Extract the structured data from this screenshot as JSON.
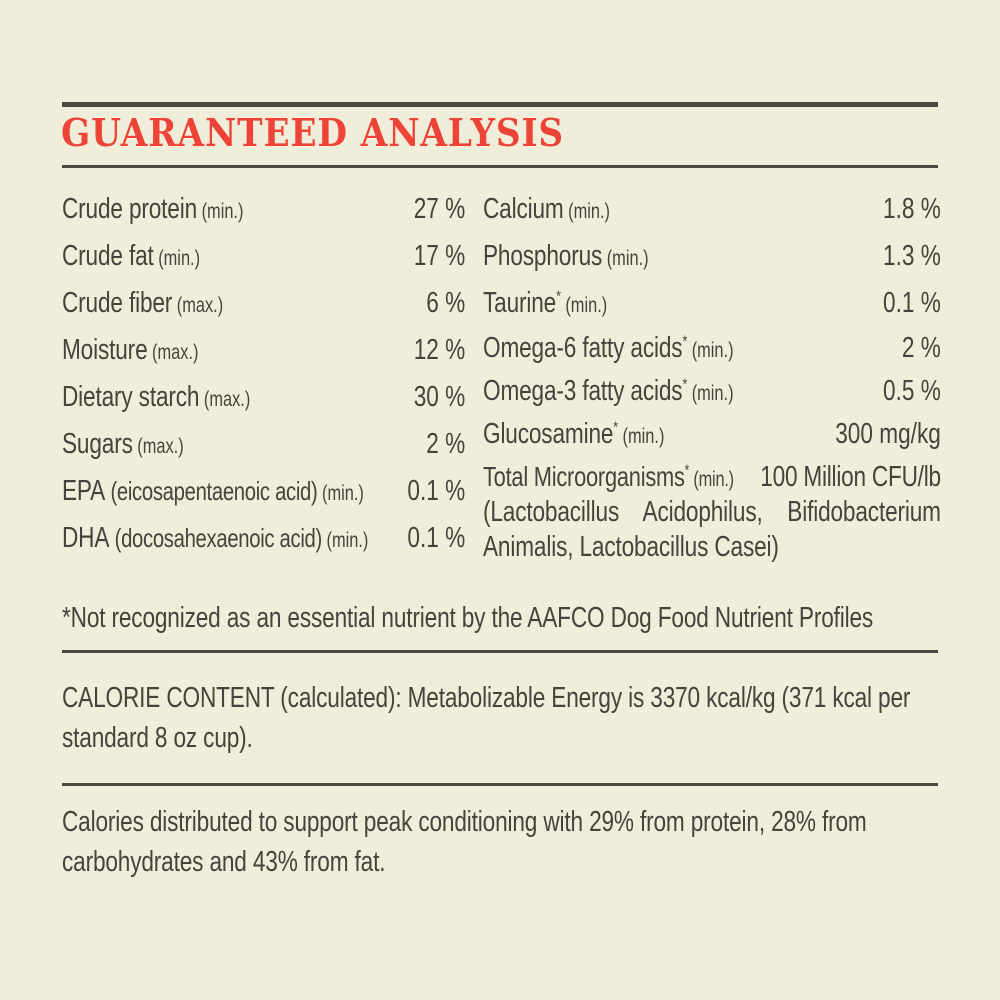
{
  "title": "GUARANTEED ANALYSIS",
  "colors": {
    "background": "#f0eedb",
    "text": "#45443c",
    "accent_red": "#ee4437",
    "rule": "#4b4a43"
  },
  "analysis": {
    "left_column": [
      {
        "name": "Crude protein",
        "qualifier": "(min.)",
        "value": "27 %"
      },
      {
        "name": "Crude fat",
        "qualifier": "(min.)",
        "value": "17 %"
      },
      {
        "name": "Crude fiber",
        "qualifier": "(max.)",
        "value": "6 %"
      },
      {
        "name": "Moisture",
        "qualifier": "(max.)",
        "value": "12 %"
      },
      {
        "name": "Dietary starch",
        "qualifier": "(max.)",
        "value": "30 %"
      },
      {
        "name": "Sugars",
        "qualifier": "(max.)",
        "value": "2 %"
      },
      {
        "name": "EPA",
        "subname": "(eicosapentaenoic acid)",
        "qualifier": "(min.)",
        "value": "0.1 %"
      },
      {
        "name": "DHA",
        "subname": "(docosahexaenoic acid)",
        "qualifier": "(min.)",
        "value": "0.1 %"
      }
    ],
    "right_column": [
      {
        "name": "Calcium",
        "qualifier": "(min.)",
        "value": "1.8 %"
      },
      {
        "name": "Phosphorus",
        "qualifier": "(min.)",
        "value": "1.3 %"
      },
      {
        "name": "Taurine",
        "asterisk": true,
        "qualifier": "(min.)",
        "value": "0.1 %"
      },
      {
        "name": "Omega-6 fatty acids",
        "asterisk": true,
        "qualifier": "(min.)",
        "value": "2 %",
        "tight": true
      },
      {
        "name": "Omega-3 fatty acids",
        "asterisk": true,
        "qualifier": "(min.)",
        "value": "0.5 %",
        "tight": true
      },
      {
        "name": "Glucosamine",
        "asterisk": true,
        "qualifier": "(min.)",
        "value": "300 mg/kg",
        "tight": true
      }
    ],
    "microorganisms": {
      "name": "Total Microorganisms",
      "asterisk": true,
      "qualifier": "(min.)",
      "value": "100 Million CFU/lb",
      "species": "(Lactobacillus Acidophilus, Bifidobacterium Animalis, Lactobacillus Casei)"
    }
  },
  "footnote": "*Not recognized as an essential nutrient by the AAFCO Dog Food Nutrient Profiles",
  "calorie_content": "CALORIE CONTENT (calculated): Metabolizable Energy is 3370 kcal/kg (371 kcal per standard 8 oz cup).",
  "calorie_distribution": "Calories distributed to support peak conditioning with 29% from protein, 28% from carbohydrates and 43% from fat."
}
